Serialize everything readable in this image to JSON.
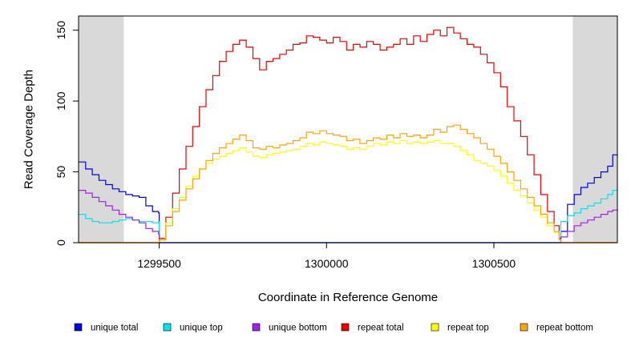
{
  "chart_data": {
    "type": "line",
    "xlabel": "Coordinate in Reference Genome",
    "ylabel": "Read Coverage Depth",
    "xlim": [
      1299259,
      1300869
    ],
    "ylim": [
      0,
      160
    ],
    "x_ticks": [
      1299500,
      1300000,
      1300500
    ],
    "x_tick_labels": [
      "1299500",
      "1300000",
      "1300500"
    ],
    "y_ticks": [
      0,
      50,
      100,
      150
    ],
    "y_tick_labels": [
      "0",
      "50",
      "100",
      "150"
    ],
    "shaded_regions": [
      [
        1299259,
        1299394
      ],
      [
        1300736,
        1300869
      ]
    ],
    "shade_color": "#d9d9d9",
    "legend_position": "bottom",
    "grid": false,
    "series": [
      {
        "name": "unique total",
        "color": "#0000ee",
        "x": [
          1299259,
          1299280,
          1299300,
          1299320,
          1299340,
          1299360,
          1299380,
          1299400,
          1299420,
          1299440,
          1299460,
          1299480,
          1299498,
          1299500,
          1299700,
          1299900,
          1300100,
          1300300,
          1300500,
          1300695,
          1300700,
          1300720,
          1300740,
          1300760,
          1300780,
          1300800,
          1300820,
          1300840,
          1300855,
          1300869
        ],
        "y": [
          57,
          52,
          48,
          44,
          41,
          38,
          36,
          34,
          33,
          32,
          26,
          22,
          21,
          0,
          0,
          0,
          0,
          0,
          0,
          0,
          8,
          27,
          34,
          39,
          42,
          46,
          50,
          54,
          62,
          60
        ]
      },
      {
        "name": "unique top",
        "color": "#00e5ee",
        "x": [
          1299259,
          1299280,
          1299300,
          1299320,
          1299340,
          1299360,
          1299380,
          1299400,
          1299420,
          1299440,
          1299460,
          1299480,
          1299498,
          1299500,
          1299700,
          1299900,
          1300100,
          1300300,
          1300500,
          1300695,
          1300700,
          1300720,
          1300740,
          1300760,
          1300780,
          1300800,
          1300820,
          1300840,
          1300855,
          1300869
        ],
        "y": [
          20,
          17,
          15,
          14,
          14,
          15,
          16,
          17,
          16,
          15,
          15,
          14,
          15,
          0,
          0,
          0,
          0,
          0,
          0,
          0,
          15,
          19,
          21,
          24,
          26,
          28,
          31,
          34,
          37,
          39
        ]
      },
      {
        "name": "unique bottom",
        "color": "#a020f0",
        "x": [
          1299259,
          1299280,
          1299300,
          1299320,
          1299340,
          1299360,
          1299380,
          1299400,
          1299420,
          1299440,
          1299460,
          1299480,
          1299498,
          1299500,
          1299700,
          1299900,
          1300100,
          1300300,
          1300500,
          1300695,
          1300700,
          1300720,
          1300740,
          1300760,
          1300780,
          1300800,
          1300820,
          1300840,
          1300855,
          1300869
        ],
        "y": [
          37,
          35,
          32,
          29,
          26,
          23,
          20,
          18,
          16,
          14,
          10,
          8,
          6,
          0,
          0,
          0,
          0,
          0,
          0,
          0,
          4,
          8,
          12,
          14,
          16,
          18,
          20,
          22,
          23,
          24
        ]
      },
      {
        "name": "repeat total",
        "color": "#ee0000",
        "x": [
          1299259,
          1299497,
          1299500,
          1299520,
          1299540,
          1299560,
          1299580,
          1299600,
          1299620,
          1299640,
          1299660,
          1299680,
          1299700,
          1299720,
          1299740,
          1299760,
          1299780,
          1299800,
          1299820,
          1299840,
          1299860,
          1299880,
          1299900,
          1299920,
          1299940,
          1299960,
          1299980,
          1300000,
          1300020,
          1300040,
          1300060,
          1300080,
          1300100,
          1300120,
          1300140,
          1300160,
          1300180,
          1300200,
          1300220,
          1300240,
          1300260,
          1300280,
          1300300,
          1300320,
          1300340,
          1300360,
          1300380,
          1300400,
          1300420,
          1300440,
          1300460,
          1300480,
          1300500,
          1300520,
          1300540,
          1300560,
          1300580,
          1300600,
          1300620,
          1300640,
          1300660,
          1300680,
          1300695,
          1300700,
          1300869
        ],
        "y": [
          0,
          0,
          3,
          18,
          35,
          52,
          68,
          82,
          96,
          108,
          118,
          128,
          135,
          140,
          143,
          138,
          130,
          122,
          128,
          130,
          133,
          136,
          140,
          141,
          146,
          145,
          143,
          141,
          145,
          142,
          136,
          140,
          138,
          142,
          140,
          136,
          138,
          140,
          144,
          140,
          146,
          142,
          147,
          150,
          146,
          152,
          148,
          144,
          140,
          138,
          133,
          127,
          120,
          110,
          96,
          86,
          75,
          62,
          48,
          34,
          22,
          12,
          3,
          0,
          0
        ]
      },
      {
        "name": "repeat top",
        "color": "#ffff00",
        "x": [
          1299259,
          1299497,
          1299500,
          1299520,
          1299540,
          1299560,
          1299580,
          1299600,
          1299620,
          1299640,
          1299660,
          1299680,
          1299700,
          1299720,
          1299740,
          1299760,
          1299780,
          1299800,
          1299820,
          1299840,
          1299860,
          1299880,
          1299900,
          1299920,
          1299940,
          1299960,
          1299980,
          1300000,
          1300020,
          1300040,
          1300060,
          1300080,
          1300100,
          1300120,
          1300140,
          1300160,
          1300180,
          1300200,
          1300220,
          1300240,
          1300260,
          1300280,
          1300300,
          1300320,
          1300340,
          1300360,
          1300380,
          1300400,
          1300420,
          1300440,
          1300460,
          1300480,
          1300500,
          1300520,
          1300540,
          1300560,
          1300580,
          1300600,
          1300620,
          1300640,
          1300660,
          1300680,
          1300695,
          1300700,
          1300869
        ],
        "y": [
          0,
          0,
          2,
          14,
          24,
          32,
          40,
          47,
          52,
          56,
          59,
          61,
          63,
          65,
          67,
          64,
          61,
          60,
          62,
          63,
          64,
          65,
          66,
          68,
          70,
          69,
          71,
          70,
          69,
          68,
          66,
          67,
          66,
          68,
          70,
          69,
          71,
          70,
          72,
          70,
          71,
          70,
          71,
          72,
          70,
          70,
          68,
          65,
          62,
          58,
          56,
          54,
          51,
          47,
          42,
          37,
          33,
          28,
          23,
          18,
          12,
          7,
          2,
          0,
          0
        ]
      },
      {
        "name": "repeat bottom",
        "color": "#ffa500",
        "x": [
          1299259,
          1299497,
          1299500,
          1299520,
          1299540,
          1299560,
          1299580,
          1299600,
          1299620,
          1299640,
          1299660,
          1299680,
          1299700,
          1299720,
          1299740,
          1299760,
          1299780,
          1299800,
          1299820,
          1299840,
          1299860,
          1299880,
          1299900,
          1299920,
          1299940,
          1299960,
          1299980,
          1300000,
          1300020,
          1300040,
          1300060,
          1300080,
          1300100,
          1300120,
          1300140,
          1300160,
          1300180,
          1300200,
          1300220,
          1300240,
          1300260,
          1300280,
          1300300,
          1300320,
          1300340,
          1300360,
          1300380,
          1300400,
          1300420,
          1300440,
          1300460,
          1300480,
          1300500,
          1300520,
          1300540,
          1300560,
          1300580,
          1300600,
          1300620,
          1300640,
          1300660,
          1300680,
          1300695,
          1300700,
          1300869
        ],
        "y": [
          0,
          0,
          2,
          12,
          22,
          30,
          38,
          45,
          52,
          58,
          63,
          67,
          70,
          73,
          76,
          72,
          67,
          66,
          68,
          67,
          69,
          70,
          72,
          74,
          78,
          77,
          79,
          77,
          76,
          75,
          72,
          73,
          70,
          72,
          74,
          73,
          76,
          74,
          77,
          75,
          76,
          74,
          76,
          80,
          78,
          82,
          83,
          80,
          77,
          74,
          70,
          66,
          61,
          56,
          50,
          44,
          38,
          32,
          26,
          20,
          14,
          8,
          2,
          0,
          0
        ]
      }
    ]
  }
}
